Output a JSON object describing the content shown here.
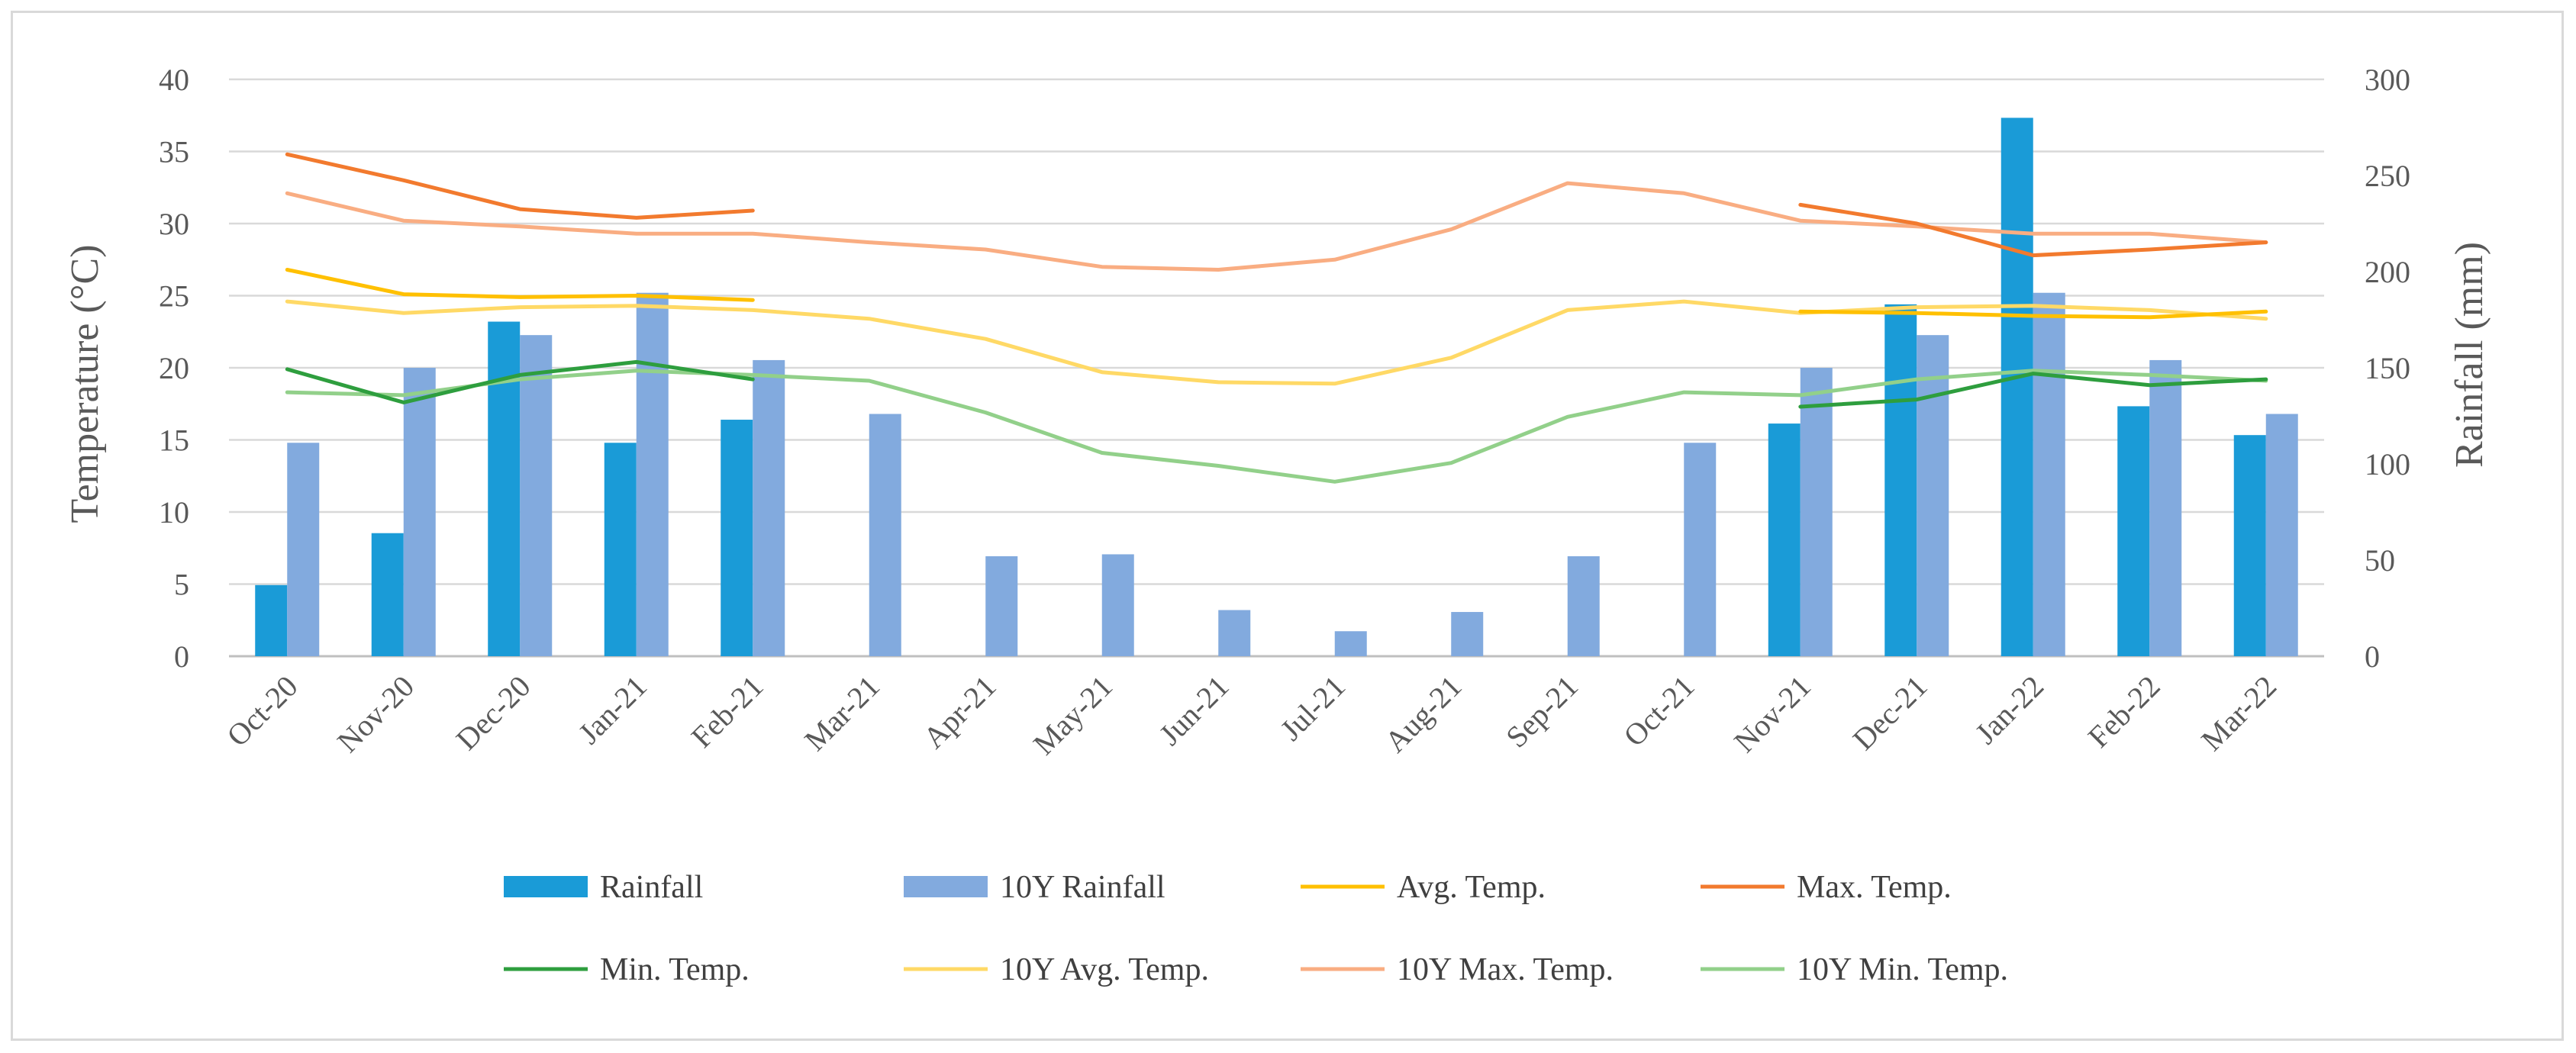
{
  "chart_data": {
    "type": "bar+line",
    "categories": [
      "Oct-20",
      "Nov-20",
      "Dec-20",
      "Jan-21",
      "Feb-21",
      "Mar-21",
      "Apr-21",
      "May-21",
      "Jun-21",
      "Jul-21",
      "Aug-21",
      "Sep-21",
      "Oct-21",
      "Nov-21",
      "Dec-21",
      "Jan-22",
      "Feb-22",
      "Mar-22"
    ],
    "y_left": {
      "label": "Temperature (°C)",
      "min": 0,
      "max": 40,
      "ticks": [
        0,
        5,
        10,
        15,
        20,
        25,
        30,
        35,
        40
      ]
    },
    "y_right": {
      "label": "Rainfall (mm)",
      "min": 0,
      "max": 300,
      "ticks": [
        0,
        50,
        100,
        150,
        200,
        250,
        300
      ]
    },
    "gridlines": true,
    "legend_position": "bottom",
    "bar_series": [
      {
        "name": "Rainfall",
        "color": "#1a9bd7",
        "axis": "right",
        "values": [
          37,
          64,
          174,
          111,
          123,
          null,
          null,
          null,
          null,
          null,
          null,
          null,
          null,
          121,
          183,
          280,
          130,
          115
        ]
      },
      {
        "name": "10Y Rainfall",
        "color": "#82aade",
        "axis": "right",
        "values": [
          111,
          150,
          167,
          189,
          154,
          126,
          52,
          53,
          24,
          13,
          23,
          52,
          111,
          150,
          167,
          189,
          154,
          126
        ]
      }
    ],
    "line_series": [
      {
        "name": "Avg. Temp.",
        "color": "#ffc000",
        "axis": "left",
        "values": [
          26.8,
          25.1,
          24.9,
          25.0,
          24.7,
          null,
          null,
          null,
          null,
          null,
          null,
          null,
          null,
          23.9,
          23.8,
          23.6,
          23.5,
          23.9
        ]
      },
      {
        "name": "Max. Temp.",
        "color": "#f27a2e",
        "axis": "left",
        "values": [
          34.8,
          33.0,
          31.0,
          30.4,
          30.9,
          null,
          null,
          null,
          null,
          null,
          null,
          null,
          null,
          31.3,
          30.0,
          27.8,
          28.2,
          28.7
        ]
      },
      {
        "name": "Min. Temp.",
        "color": "#2e9e3e",
        "axis": "left",
        "values": [
          19.9,
          17.6,
          19.5,
          20.4,
          19.2,
          null,
          null,
          null,
          null,
          null,
          null,
          null,
          null,
          17.3,
          17.8,
          19.6,
          18.8,
          19.2
        ]
      },
      {
        "name": "10Y Avg. Temp.",
        "color": "#ffd966",
        "axis": "left",
        "values": [
          24.6,
          23.8,
          24.2,
          24.3,
          24.0,
          23.4,
          22.0,
          19.7,
          19.0,
          18.9,
          20.7,
          24.0,
          24.6,
          23.8,
          24.2,
          24.3,
          24.0,
          23.4
        ]
      },
      {
        "name": "10Y Max. Temp.",
        "color": "#f9ad82",
        "axis": "left",
        "values": [
          32.1,
          30.2,
          29.8,
          29.3,
          29.3,
          28.7,
          28.2,
          27.0,
          26.8,
          27.5,
          29.6,
          32.8,
          32.1,
          30.2,
          29.8,
          29.3,
          29.3,
          28.7
        ]
      },
      {
        "name": "10Y Min. Temp.",
        "color": "#92d08a",
        "axis": "left",
        "values": [
          18.3,
          18.1,
          19.2,
          19.8,
          19.5,
          19.1,
          16.9,
          14.1,
          13.2,
          12.1,
          13.4,
          16.6,
          18.3,
          18.1,
          19.2,
          19.8,
          19.5,
          19.1
        ]
      }
    ],
    "legend": [
      {
        "label": "Rainfall",
        "kind": "bar",
        "color": "#1a9bd7"
      },
      {
        "label": "10Y Rainfall",
        "kind": "bar",
        "color": "#82aade"
      },
      {
        "label": "Avg. Temp.",
        "kind": "line",
        "color": "#ffc000"
      },
      {
        "label": "Max. Temp.",
        "kind": "line",
        "color": "#f27a2e"
      },
      {
        "label": "Min. Temp.",
        "kind": "line",
        "color": "#2e9e3e"
      },
      {
        "label": "10Y Avg. Temp.",
        "kind": "line",
        "color": "#ffd966"
      },
      {
        "label": "10Y Max. Temp.",
        "kind": "line",
        "color": "#f9ad82"
      },
      {
        "label": "10Y Min. Temp.",
        "kind": "line",
        "color": "#92d08a"
      }
    ]
  }
}
